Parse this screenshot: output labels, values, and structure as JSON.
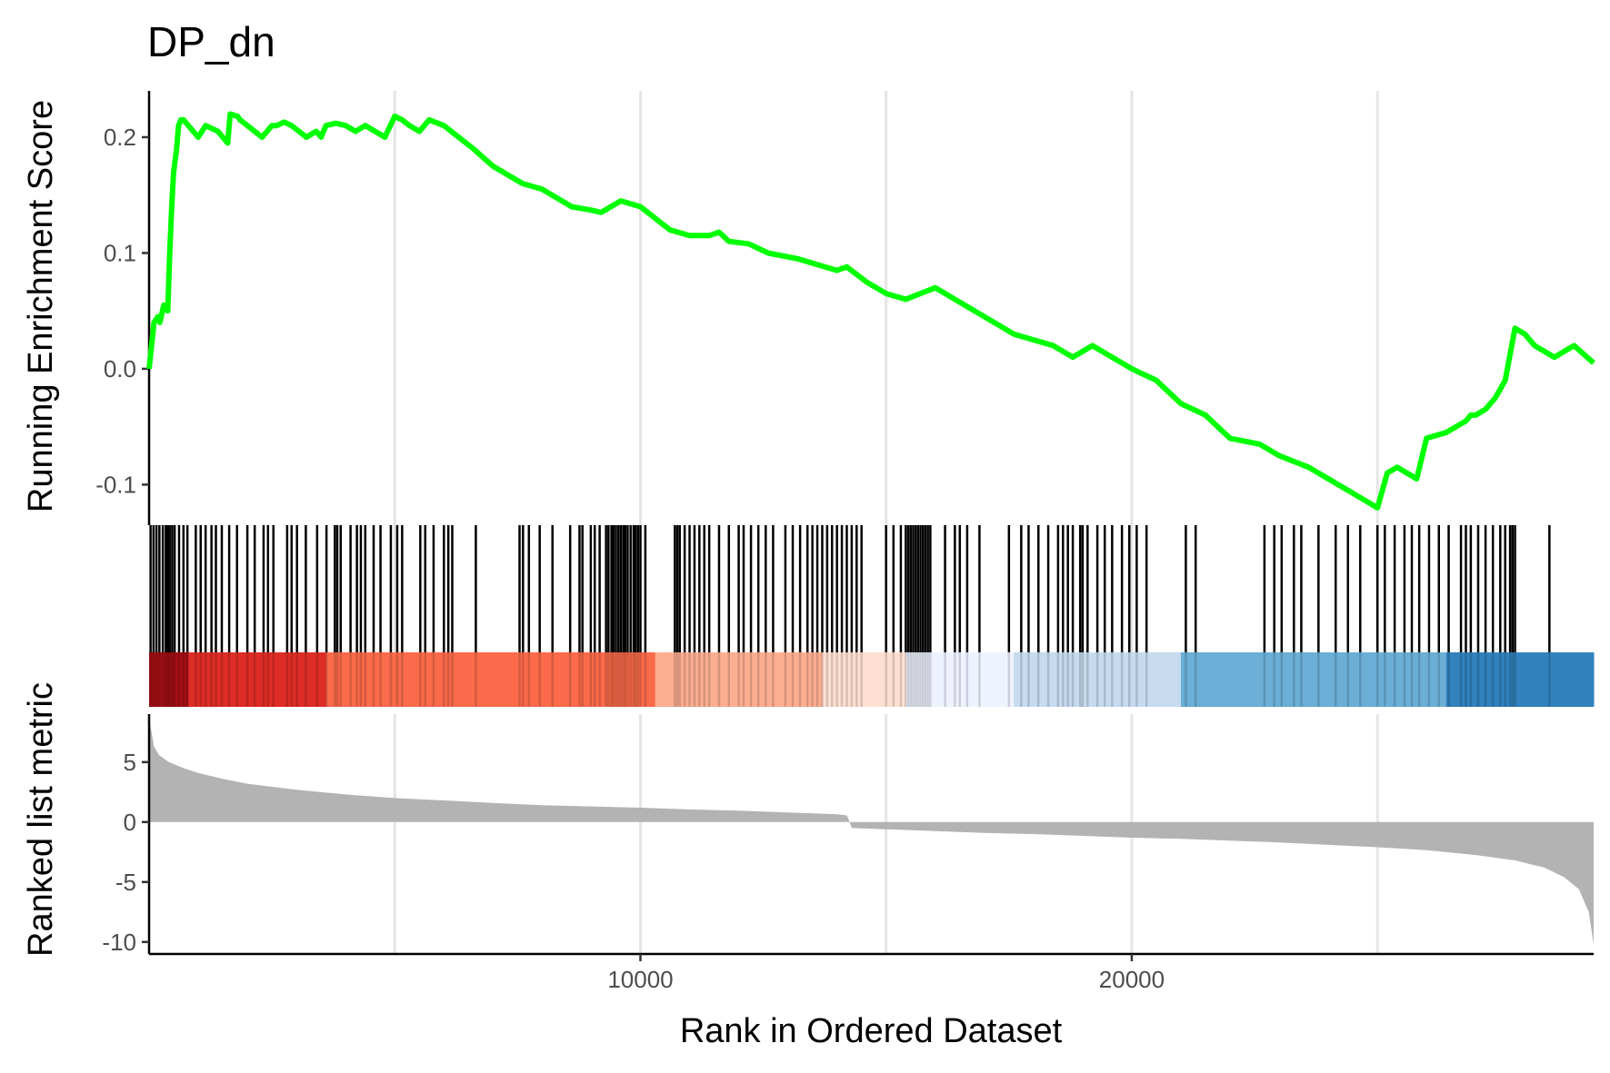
{
  "chart_data": {
    "type": "line",
    "title": "DP_dn",
    "xlabel": "Rank in Ordered Dataset",
    "xlim": [
      0,
      29400
    ],
    "x_ticks": [
      10000,
      20000
    ],
    "x_tick_labels": [
      "10000",
      "20000"
    ],
    "x_gridlines": [
      5000,
      10000,
      15000,
      20000,
      25000
    ],
    "grid": "vertical major only",
    "panels": [
      {
        "name": "running-es",
        "ylabel": "Running Enrichment Score",
        "ylim": [
          -0.135,
          0.24
        ],
        "y_ticks": [
          -0.1,
          0.0,
          0.1,
          0.2
        ],
        "y_tick_labels": [
          "-0.1",
          "0.0",
          "0.1",
          "0.2"
        ],
        "line_color": "#00ff00",
        "series": [
          {
            "x": [
              0,
              100,
              180,
              220,
              300,
              330,
              380,
              420,
              460,
              500,
              560,
              600,
              650,
              700,
              760,
              1000,
              1150,
              1400,
              1600,
              1650,
              1800,
              1850,
              2300,
              2500,
              2600,
              2750,
              2900,
              3200,
              3400,
              3500,
              3600,
              3800,
              4000,
              4200,
              4400,
              4600,
              4800,
              5000,
              5150,
              5300,
              5500,
              5700,
              6000,
              6300,
              6600,
              7000,
              7600,
              8000,
              8200,
              8600,
              9000,
              9200,
              9400,
              9600,
              10000,
              10600,
              11000,
              11400,
              11600,
              11800,
              12200,
              12600,
              13200,
              13600,
              14000,
              14200,
              14600,
              15000,
              15400,
              15700,
              16000,
              16400,
              16800,
              17200,
              17600,
              18000,
              18400,
              18800,
              19200,
              19600,
              20000,
              20500,
              21000,
              21500,
              22000,
              22600,
              23000,
              23600,
              24000,
              24600,
              25000,
              25200,
              25400,
              25600,
              25800,
              26000,
              26400,
              26600,
              26800,
              26900,
              27000,
              27200,
              27400,
              27600,
              27800,
              28000,
              28200,
              28600,
              29000,
              29400
            ],
            "y": [
              0.0,
              0.04,
              0.045,
              0.04,
              0.055,
              0.052,
              0.05,
              0.1,
              0.14,
              0.17,
              0.19,
              0.21,
              0.215,
              0.215,
              0.212,
              0.2,
              0.21,
              0.205,
              0.195,
              0.22,
              0.218,
              0.215,
              0.2,
              0.21,
              0.21,
              0.213,
              0.21,
              0.2,
              0.205,
              0.2,
              0.21,
              0.212,
              0.21,
              0.205,
              0.21,
              0.205,
              0.2,
              0.218,
              0.215,
              0.21,
              0.205,
              0.215,
              0.21,
              0.2,
              0.19,
              0.175,
              0.16,
              0.155,
              0.15,
              0.14,
              0.137,
              0.135,
              0.14,
              0.145,
              0.14,
              0.12,
              0.115,
              0.115,
              0.118,
              0.11,
              0.108,
              0.1,
              0.095,
              0.09,
              0.085,
              0.088,
              0.075,
              0.065,
              0.06,
              0.065,
              0.07,
              0.06,
              0.05,
              0.04,
              0.03,
              0.025,
              0.02,
              0.01,
              0.02,
              0.01,
              0.0,
              -0.01,
              -0.03,
              -0.04,
              -0.06,
              -0.065,
              -0.075,
              -0.085,
              -0.095,
              -0.11,
              -0.12,
              -0.09,
              -0.085,
              -0.09,
              -0.095,
              -0.06,
              -0.055,
              -0.05,
              -0.045,
              -0.04,
              -0.04,
              -0.035,
              -0.025,
              -0.01,
              0.035,
              0.03,
              0.02,
              0.01,
              0.02,
              0.005
            ]
          }
        ]
      },
      {
        "name": "hits",
        "x": [
          30,
          90,
          150,
          210,
          280,
          340,
          380,
          420,
          470,
          520,
          610,
          700,
          780,
          950,
          1050,
          1150,
          1270,
          1360,
          1480,
          1630,
          1790,
          2000,
          2150,
          2330,
          2420,
          2530,
          2810,
          2900,
          3010,
          3190,
          3420,
          3610,
          3780,
          3830,
          3900,
          4100,
          4230,
          4310,
          4400,
          4570,
          4710,
          4920,
          5050,
          5150,
          5520,
          5620,
          5790,
          6000,
          6090,
          6170,
          6650,
          7540,
          7610,
          7730,
          7950,
          8210,
          8570,
          8760,
          8820,
          8990,
          9070,
          9170,
          9300,
          9350,
          9410,
          9450,
          9500,
          9550,
          9600,
          9650,
          9690,
          9740,
          9800,
          9860,
          9900,
          9950,
          10000,
          10100,
          10700,
          10750,
          10800,
          10900,
          11000,
          11100,
          11200,
          11300,
          11400,
          11600,
          11800,
          12000,
          12100,
          12250,
          12400,
          12550,
          12700,
          12950,
          13100,
          13250,
          13400,
          13500,
          13600,
          13700,
          13800,
          13900,
          14000,
          14100,
          14200,
          14300,
          14400,
          14500,
          15000,
          15150,
          15300,
          15400,
          15450,
          15500,
          15550,
          15600,
          15650,
          15700,
          15750,
          15800,
          15850,
          15900,
          16200,
          16400,
          16500,
          16650,
          16900,
          17500,
          17750,
          17900,
          18100,
          18300,
          18500,
          18600,
          18700,
          18800,
          18950,
          19000,
          19100,
          19300,
          19450,
          19600,
          19800,
          19950,
          20100,
          20300,
          21100,
          21300,
          22700,
          22900,
          23050,
          23300,
          23450,
          23800,
          24150,
          24400,
          24650,
          25000,
          25150,
          25350,
          25550,
          25700,
          25850,
          26050,
          26250,
          26450,
          26700,
          26800,
          26900,
          27050,
          27200,
          27350,
          27500,
          27600,
          27700,
          27750,
          27800,
          28500
        ]
      },
      {
        "name": "ranked-list-metric",
        "ylabel": "Ranked list metric",
        "ylim": [
          -11,
          9
        ],
        "y_ticks": [
          -10,
          -5,
          0,
          5
        ],
        "y_tick_labels": [
          "-10",
          "-5",
          "0",
          "5"
        ],
        "fill_color": "#b3b3b3",
        "color_band": [
          {
            "from": 0,
            "to": 800,
            "color": "#a50f15"
          },
          {
            "from": 800,
            "to": 3600,
            "color": "#de2d26"
          },
          {
            "from": 3600,
            "to": 10300,
            "color": "#fb6a4a"
          },
          {
            "from": 10300,
            "to": 13700,
            "color": "#fcae91"
          },
          {
            "from": 13700,
            "to": 15400,
            "color": "#fee0d2"
          },
          {
            "from": 15400,
            "to": 17600,
            "color": "#eff3ff"
          },
          {
            "from": 17600,
            "to": 21000,
            "color": "#c6dbef"
          },
          {
            "from": 21000,
            "to": 26400,
            "color": "#6baed6"
          },
          {
            "from": 26400,
            "to": 29400,
            "color": "#3182bd"
          }
        ],
        "series": [
          {
            "x": [
              0,
              30,
              100,
              200,
              400,
              700,
              1000,
              1500,
              2000,
              3000,
              4000,
              5000,
              6000,
              7000,
              8000,
              9000,
              10000,
              11000,
              12000,
              13000,
              14000,
              14200,
              14250,
              14300,
              15000,
              16000,
              17000,
              18000,
              19000,
              20000,
              21000,
              22000,
              23000,
              24000,
              25000,
              26000,
              27000,
              27800,
              28400,
              28800,
              29100,
              29300,
              29400
            ],
            "y": [
              9.0,
              8.0,
              6.3,
              5.6,
              5.0,
              4.5,
              4.1,
              3.6,
              3.2,
              2.7,
              2.3,
              2.0,
              1.8,
              1.6,
              1.4,
              1.3,
              1.2,
              1.05,
              0.95,
              0.8,
              0.65,
              0.55,
              0.1,
              -0.5,
              -0.6,
              -0.75,
              -0.9,
              -1.0,
              -1.15,
              -1.3,
              -1.4,
              -1.55,
              -1.7,
              -1.9,
              -2.1,
              -2.35,
              -2.75,
              -3.2,
              -3.8,
              -4.6,
              -5.6,
              -7.5,
              -10.2
            ]
          }
        ]
      }
    ]
  }
}
